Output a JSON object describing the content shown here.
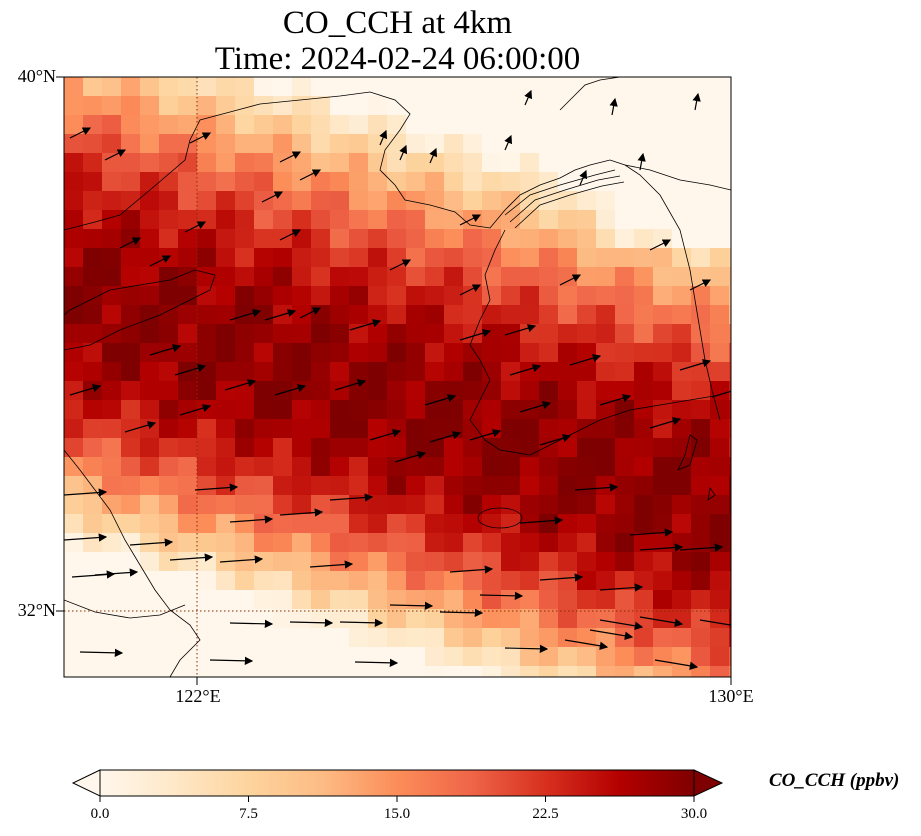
{
  "title_line1": "CO_CCH at 4km",
  "title_line2": "Time: 2024-02-24 06:00:00",
  "lat_labels": [
    "40°N",
    "32°N"
  ],
  "lon_labels": [
    "122°E",
    "130°E"
  ],
  "extent": {
    "lon_min": 120,
    "lon_max": 130,
    "lat_min": 31,
    "lat_max": 40
  },
  "gridlines": {
    "lons": [
      122,
      130
    ],
    "lats": [
      32,
      40
    ],
    "style": "dotted"
  },
  "colorbar": {
    "label": "CO_CCH (ppbv)",
    "ticks": [
      "0.0",
      "7.5",
      "15.0",
      "22.5",
      "30.0"
    ],
    "min": 0,
    "max": 30,
    "extend": "both",
    "colormap": "OrRd",
    "stops": [
      "#fff7ec",
      "#fee8c8",
      "#fdd49e",
      "#fdbb84",
      "#fc8d59",
      "#ef6548",
      "#d7301f",
      "#b30000",
      "#7f0000"
    ]
  }
}
